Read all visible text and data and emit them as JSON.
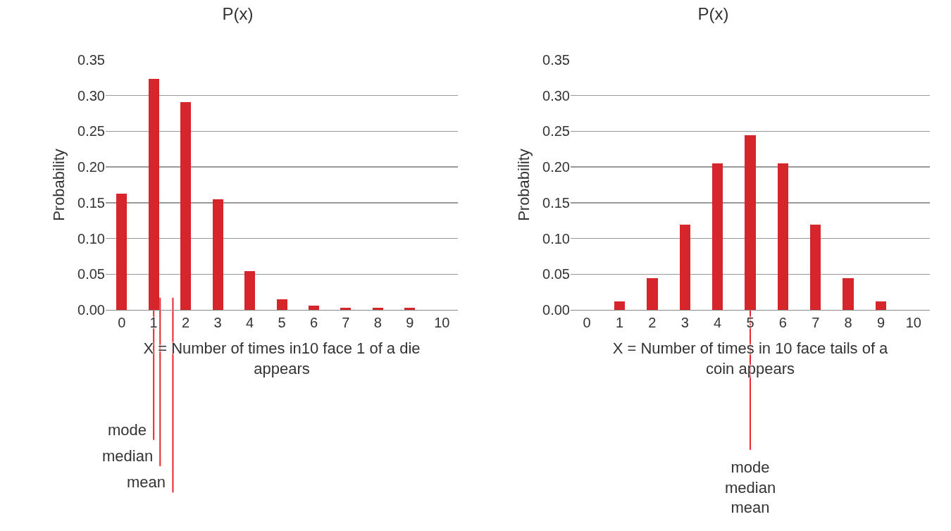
{
  "chart_data": [
    {
      "type": "bar",
      "title": "P(x)",
      "xlabel": "X = Number of times in10 face 1 of a die appears",
      "ylabel": "Probability",
      "x": [
        0,
        1,
        2,
        3,
        4,
        5,
        6,
        7,
        8,
        9,
        10
      ],
      "values": [
        0.163,
        0.323,
        0.291,
        0.155,
        0.054,
        0.015,
        0.006,
        0.003,
        0.003,
        0.003,
        0
      ],
      "color": "#d7262b",
      "xlim": [
        -0.5,
        10.5
      ],
      "xticks": [
        0,
        1,
        2,
        3,
        4,
        5,
        6,
        7,
        8,
        9,
        10
      ],
      "ylim": [
        0,
        0.35
      ],
      "yticks": [
        {
          "value": 0,
          "label": "0.00"
        },
        {
          "value": 0.05,
          "label": "0.05"
        },
        {
          "value": 0.1,
          "label": "0.10"
        },
        {
          "value": 0.15,
          "label": "0.15"
        },
        {
          "value": 0.2,
          "label": "0.20"
        },
        {
          "value": 0.25,
          "label": "0.25"
        },
        {
          "value": 0.3,
          "label": "0.30"
        },
        {
          "value": 0.35,
          "label": "0.35"
        }
      ],
      "grid": "y",
      "ref_lines": [
        {
          "axis": "x",
          "value": 1,
          "label": "mode",
          "color": "#e8262b"
        },
        {
          "axis": "x",
          "value": 1.2,
          "label": "median",
          "color": "#e8262b"
        },
        {
          "axis": "x",
          "value": 1.6,
          "label": "mean",
          "color": "#e8262b"
        }
      ]
    },
    {
      "type": "bar",
      "title": "P(x)",
      "xlabel": "X = Number of times in 10 face tails of a coin appears",
      "ylabel": "Probability",
      "x": [
        0,
        1,
        2,
        3,
        4,
        5,
        6,
        7,
        8,
        9,
        10
      ],
      "values": [
        0,
        0.012,
        0.044,
        0.119,
        0.205,
        0.245,
        0.205,
        0.119,
        0.044,
        0.012,
        0
      ],
      "color": "#d7262b",
      "xlim": [
        -0.5,
        10.5
      ],
      "xticks": [
        0,
        1,
        2,
        3,
        4,
        5,
        6,
        7,
        8,
        9,
        10
      ],
      "ylim": [
        0,
        0.35
      ],
      "yticks": [
        {
          "value": 0,
          "label": "0.00"
        },
        {
          "value": 0.05,
          "label": "0.05"
        },
        {
          "value": 0.1,
          "label": "0.10"
        },
        {
          "value": 0.15,
          "label": "0.15"
        },
        {
          "value": 0.2,
          "label": "0.20"
        },
        {
          "value": 0.25,
          "label": "0.25"
        },
        {
          "value": 0.3,
          "label": "0.30"
        },
        {
          "value": 0.35,
          "label": "0.35"
        }
      ],
      "grid": "y",
      "ref_lines": [
        {
          "axis": "x",
          "value": 5,
          "label": "mode\nmedian\nmean",
          "color": "#e8262b"
        }
      ]
    }
  ]
}
